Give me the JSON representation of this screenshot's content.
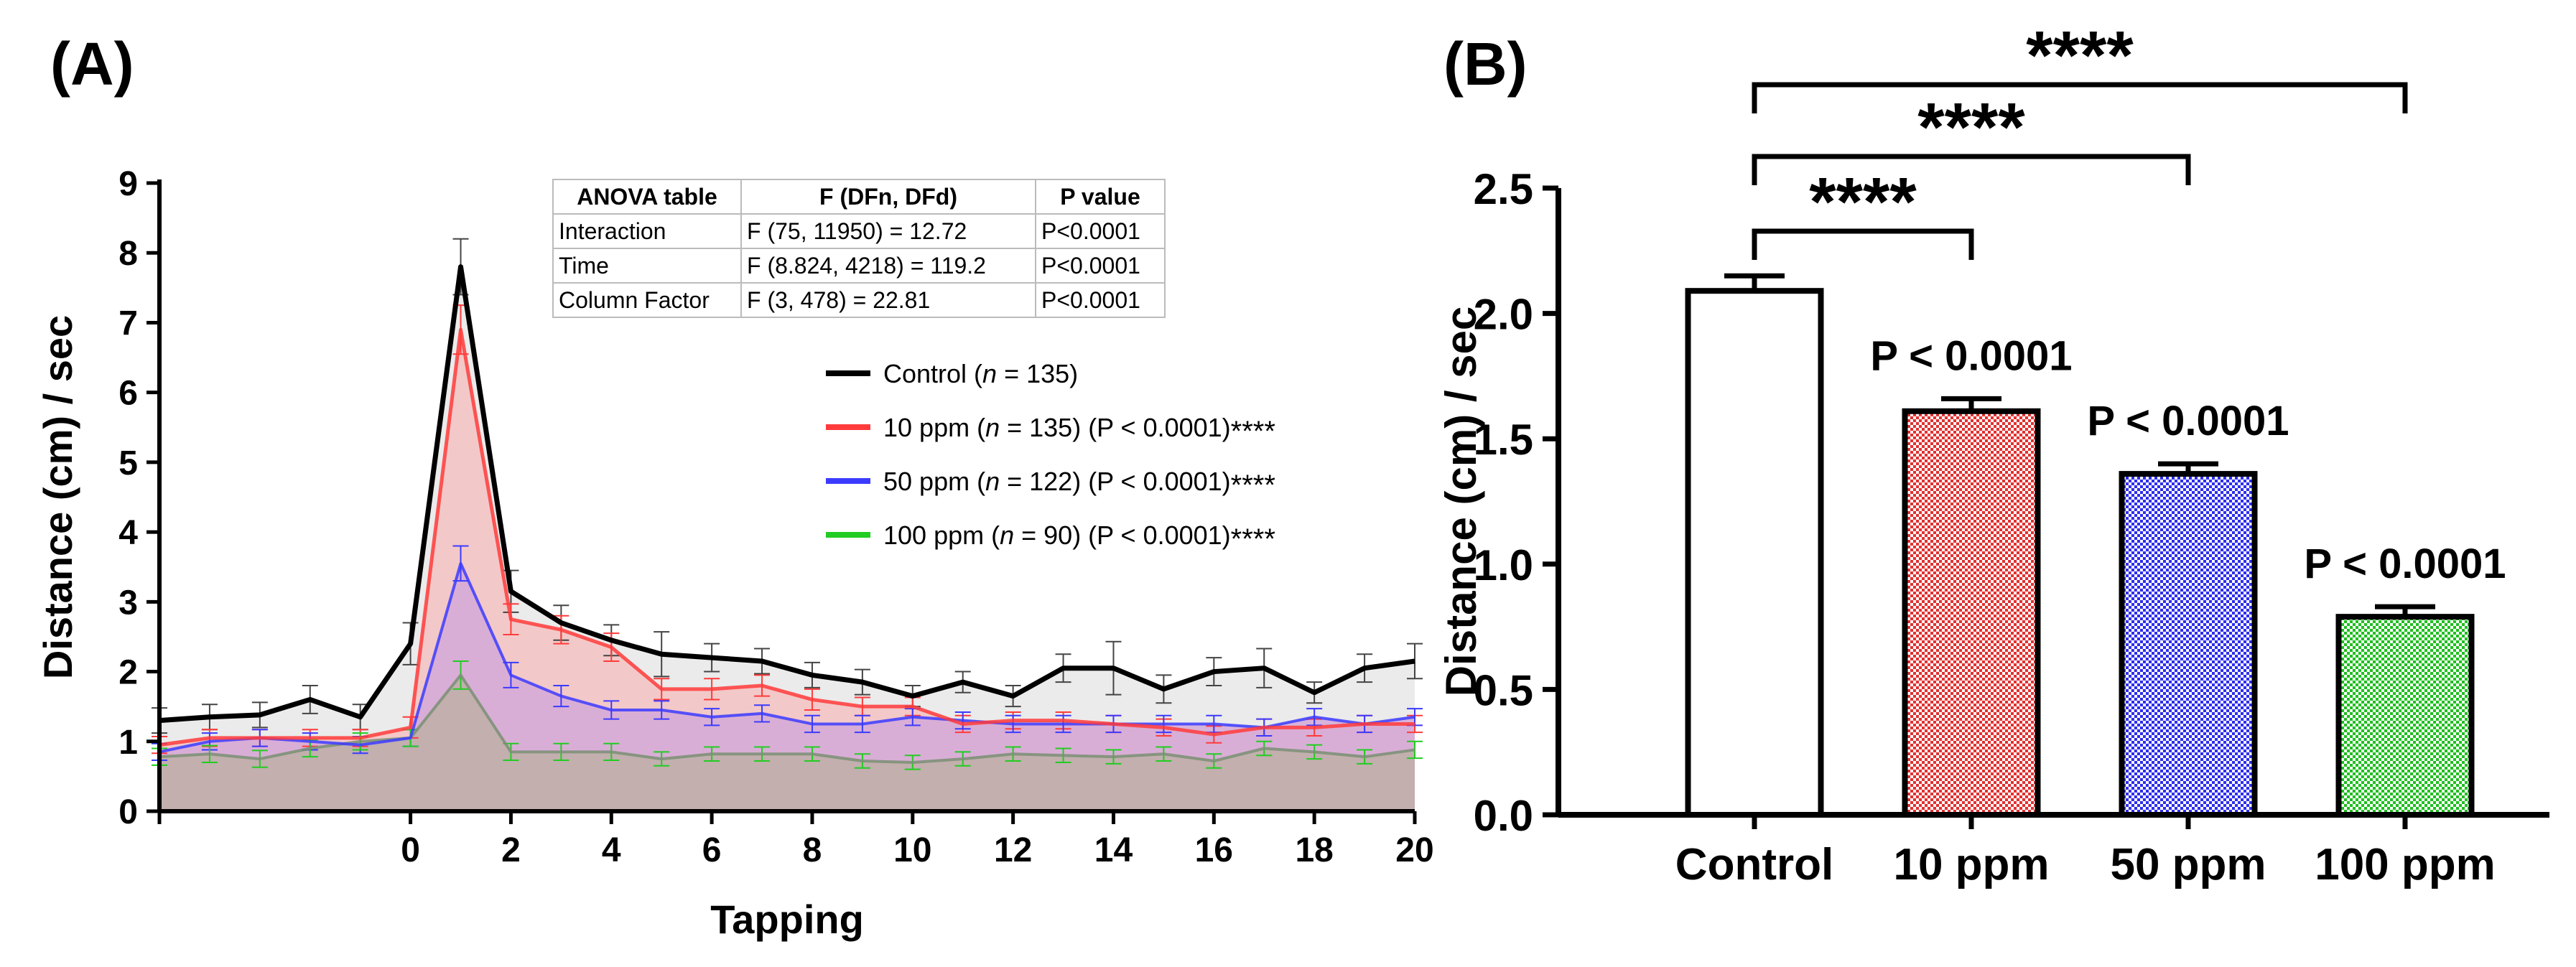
{
  "panel_a": {
    "label": "(A)"
  },
  "panel_b": {
    "label": "(B)"
  },
  "colors": {
    "control": "#000000",
    "ppm10": "#ff3b3b",
    "ppm50": "#3b3bff",
    "ppm100": "#22cc22",
    "fill_control": "#ebebeb",
    "fill_ppm10": "#f4c2c2",
    "fill_ppm50": "#d3a9d8",
    "fill_ppm100": "#bdafa7"
  },
  "anova": {
    "headers": [
      "ANOVA table",
      "F (DFn, DFd)",
      "P value"
    ],
    "rows": [
      [
        "Interaction",
        "F (75, 11950) = 12.72",
        "P<0.0001"
      ],
      [
        "Time",
        "F (8.824, 4218) = 119.2",
        "P<0.0001"
      ],
      [
        "Column Factor",
        "F (3, 478) = 22.81",
        "P<0.0001"
      ]
    ]
  },
  "legend": [
    {
      "dose": "Control",
      "n_label": "n",
      "n_value": "= 135)",
      "p_text": "",
      "stars": ""
    },
    {
      "dose": "10  ppm",
      "n_label": "n",
      "n_value": "= 135)",
      "p_text": "(P < 0.0001)",
      "stars": "****"
    },
    {
      "dose": "50  ppm",
      "n_label": "n",
      "n_value": "= 122)",
      "p_text": "(P < 0.0001)",
      "stars": "****"
    },
    {
      "dose": "100  ppm",
      "n_label": "n",
      "n_value": "= 90)",
      "p_text": "(P < 0.0001)",
      "stars": "****"
    }
  ],
  "chart_data": [
    {
      "type": "area",
      "title": "",
      "xlabel": "Tapping",
      "ylabel": "Distance (cm) / sec",
      "xlim": [
        -5,
        20
      ],
      "ylim": [
        0,
        9
      ],
      "xticks": [
        0,
        2,
        4,
        6,
        8,
        10,
        12,
        14,
        16,
        18,
        20
      ],
      "yticks": [
        0,
        1,
        2,
        3,
        4,
        5,
        6,
        7,
        8,
        9
      ],
      "x": [
        -5,
        -4,
        -3,
        -2,
        -1,
        0,
        1,
        2,
        3,
        4,
        5,
        6,
        7,
        8,
        9,
        10,
        11,
        12,
        13,
        14,
        15,
        16,
        17,
        18,
        19,
        20
      ],
      "series": [
        {
          "name": "Control",
          "values": [
            1.3,
            1.35,
            1.38,
            1.6,
            1.35,
            2.4,
            7.8,
            3.15,
            2.7,
            2.45,
            2.25,
            2.2,
            2.15,
            1.95,
            1.85,
            1.65,
            1.85,
            1.65,
            2.05,
            2.05,
            1.75,
            2.0,
            2.05,
            1.7,
            2.05,
            2.15
          ],
          "errors": [
            0.18,
            0.18,
            0.18,
            0.2,
            0.18,
            0.3,
            0.4,
            0.3,
            0.25,
            0.22,
            0.32,
            0.2,
            0.18,
            0.18,
            0.18,
            0.15,
            0.15,
            0.15,
            0.2,
            0.38,
            0.2,
            0.2,
            0.28,
            0.15,
            0.2,
            0.25
          ]
        },
        {
          "name": "10 ppm",
          "values": [
            0.95,
            1.05,
            1.05,
            1.05,
            1.05,
            1.2,
            6.9,
            2.75,
            2.6,
            2.35,
            1.75,
            1.75,
            1.8,
            1.6,
            1.5,
            1.5,
            1.25,
            1.3,
            1.3,
            1.25,
            1.2,
            1.1,
            1.2,
            1.2,
            1.25,
            1.25
          ],
          "errors": [
            0.12,
            0.12,
            0.12,
            0.12,
            0.12,
            0.15,
            0.35,
            0.22,
            0.2,
            0.2,
            0.15,
            0.15,
            0.15,
            0.15,
            0.13,
            0.13,
            0.12,
            0.12,
            0.12,
            0.12,
            0.12,
            0.12,
            0.12,
            0.12,
            0.12,
            0.12
          ]
        },
        {
          "name": "50 ppm",
          "values": [
            0.85,
            1.0,
            1.05,
            1.0,
            0.95,
            1.05,
            3.55,
            1.95,
            1.65,
            1.45,
            1.45,
            1.35,
            1.4,
            1.25,
            1.25,
            1.35,
            1.3,
            1.25,
            1.25,
            1.25,
            1.25,
            1.25,
            1.2,
            1.35,
            1.25,
            1.35
          ],
          "errors": [
            0.12,
            0.12,
            0.12,
            0.12,
            0.12,
            0.12,
            0.25,
            0.18,
            0.15,
            0.13,
            0.13,
            0.12,
            0.12,
            0.12,
            0.12,
            0.12,
            0.12,
            0.12,
            0.12,
            0.12,
            0.12,
            0.12,
            0.12,
            0.12,
            0.12,
            0.12
          ]
        },
        {
          "name": "100 ppm",
          "values": [
            0.78,
            0.82,
            0.75,
            0.9,
            1.0,
            1.05,
            1.95,
            0.85,
            0.85,
            0.85,
            0.75,
            0.82,
            0.82,
            0.82,
            0.72,
            0.7,
            0.75,
            0.82,
            0.8,
            0.78,
            0.82,
            0.72,
            0.9,
            0.85,
            0.78,
            0.88
          ],
          "errors": [
            0.12,
            0.12,
            0.12,
            0.12,
            0.12,
            0.12,
            0.2,
            0.12,
            0.12,
            0.12,
            0.1,
            0.1,
            0.1,
            0.1,
            0.1,
            0.1,
            0.1,
            0.1,
            0.1,
            0.1,
            0.1,
            0.1,
            0.1,
            0.1,
            0.1,
            0.12
          ]
        }
      ]
    },
    {
      "type": "bar",
      "title": "",
      "xlabel": "",
      "ylabel": "Distance (cm) / sec",
      "ylim": [
        0,
        2.5
      ],
      "yticks": [
        "0.0",
        "0.5",
        "1.0",
        "1.5",
        "2.0",
        "2.5"
      ],
      "categories": [
        "Control",
        "10 ppm",
        "50 ppm",
        "100 ppm"
      ],
      "values": [
        2.09,
        1.61,
        1.36,
        0.79
      ],
      "errors": [
        0.06,
        0.05,
        0.04,
        0.04
      ],
      "bar_labels": [
        "",
        "P < 0.0001",
        "P < 0.0001",
        "P < 0.0001"
      ],
      "significance": [
        {
          "from": "Control",
          "to": "10 ppm",
          "label": "****"
        },
        {
          "from": "Control",
          "to": "50 ppm",
          "label": "****"
        },
        {
          "from": "Control",
          "to": "100 ppm",
          "label": "****"
        }
      ]
    }
  ]
}
